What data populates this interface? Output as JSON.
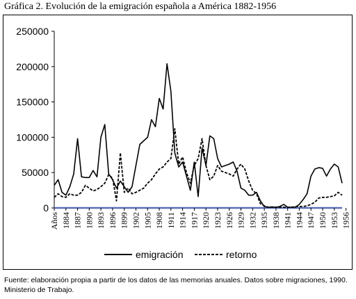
{
  "title": "Gráfica 2. Evolución de la emigración española a América  1882-1956",
  "source": "Fuente: elaboración propia a partir de los datos de las memorias anuales. Datos sobre migraciones, 1990. Ministerio de Trabajo.",
  "chart_data": {
    "type": "line",
    "title": "Gráfica 2. Evolución de la emigración española a América  1882-1956",
    "xlabel": "",
    "ylabel": "",
    "ylim": [
      0,
      250000
    ],
    "yticks": [
      0,
      50000,
      100000,
      150000,
      200000,
      250000
    ],
    "grid": false,
    "legend": "bottom",
    "x_tick_labels": [
      "Años",
      "1884",
      "1887",
      "1890",
      "1893",
      "1896",
      "1899",
      "1902",
      "1905",
      "1908",
      "1911",
      "1914",
      "1917",
      "1920",
      "1923",
      "1926",
      "1929",
      "1932",
      "1935",
      "1938",
      "1941",
      "1944",
      "1947",
      "1950",
      "1953",
      "1956"
    ],
    "x": [
      1882,
      1883,
      1884,
      1885,
      1886,
      1887,
      1888,
      1889,
      1890,
      1891,
      1892,
      1893,
      1894,
      1895,
      1896,
      1897,
      1898,
      1899,
      1900,
      1901,
      1902,
      1903,
      1904,
      1905,
      1906,
      1907,
      1908,
      1909,
      1910,
      1911,
      1912,
      1913,
      1914,
      1915,
      1916,
      1917,
      1918,
      1919,
      1920,
      1921,
      1922,
      1923,
      1924,
      1925,
      1926,
      1927,
      1928,
      1929,
      1930,
      1931,
      1932,
      1933,
      1934,
      1935,
      1936,
      1937,
      1938,
      1939,
      1940,
      1941,
      1942,
      1943,
      1944,
      1945,
      1946,
      1947,
      1948,
      1949,
      1950,
      1951,
      1952,
      1953,
      1954,
      1955,
      1956
    ],
    "series": [
      {
        "name": "emigración",
        "style": "solid",
        "values": [
          32000,
          40000,
          22000,
          18000,
          30000,
          48000,
          98000,
          44000,
          43000,
          43000,
          53000,
          44000,
          100000,
          118000,
          48000,
          40000,
          28000,
          38000,
          30000,
          22000,
          30000,
          60000,
          90000,
          95000,
          100000,
          125000,
          115000,
          155000,
          140000,
          204000,
          165000,
          78000,
          58000,
          65000,
          45000,
          25000,
          65000,
          16000,
          85000,
          60000,
          102000,
          98000,
          70000,
          58000,
          60000,
          62000,
          65000,
          52000,
          28000,
          25000,
          18000,
          18000,
          22000,
          10000,
          2000,
          1000,
          1500,
          1000,
          2000,
          5000,
          1000,
          1000,
          1000,
          5000,
          12000,
          20000,
          45000,
          55000,
          57000,
          56000,
          45000,
          55000,
          62000,
          58000,
          35000
        ]
      },
      {
        "name": "retorno",
        "style": "dashed",
        "values": [
          15000,
          20000,
          16000,
          15000,
          20000,
          18000,
          18000,
          22000,
          32000,
          28000,
          24000,
          26000,
          30000,
          35000,
          47000,
          42000,
          10000,
          78000,
          22000,
          28000,
          20000,
          22000,
          25000,
          28000,
          35000,
          40000,
          48000,
          55000,
          58000,
          65000,
          70000,
          112000,
          62000,
          72000,
          50000,
          35000,
          60000,
          70000,
          98000,
          60000,
          40000,
          45000,
          60000,
          52000,
          50000,
          48000,
          45000,
          55000,
          62000,
          55000,
          38000,
          25000,
          20000,
          6000,
          3000,
          1000,
          1000,
          1000,
          1000,
          1000,
          1000,
          1000,
          2000,
          2000,
          2000,
          3000,
          5000,
          8000,
          14000,
          15000,
          15000,
          16000,
          17000,
          22000,
          18000
        ]
      }
    ]
  }
}
